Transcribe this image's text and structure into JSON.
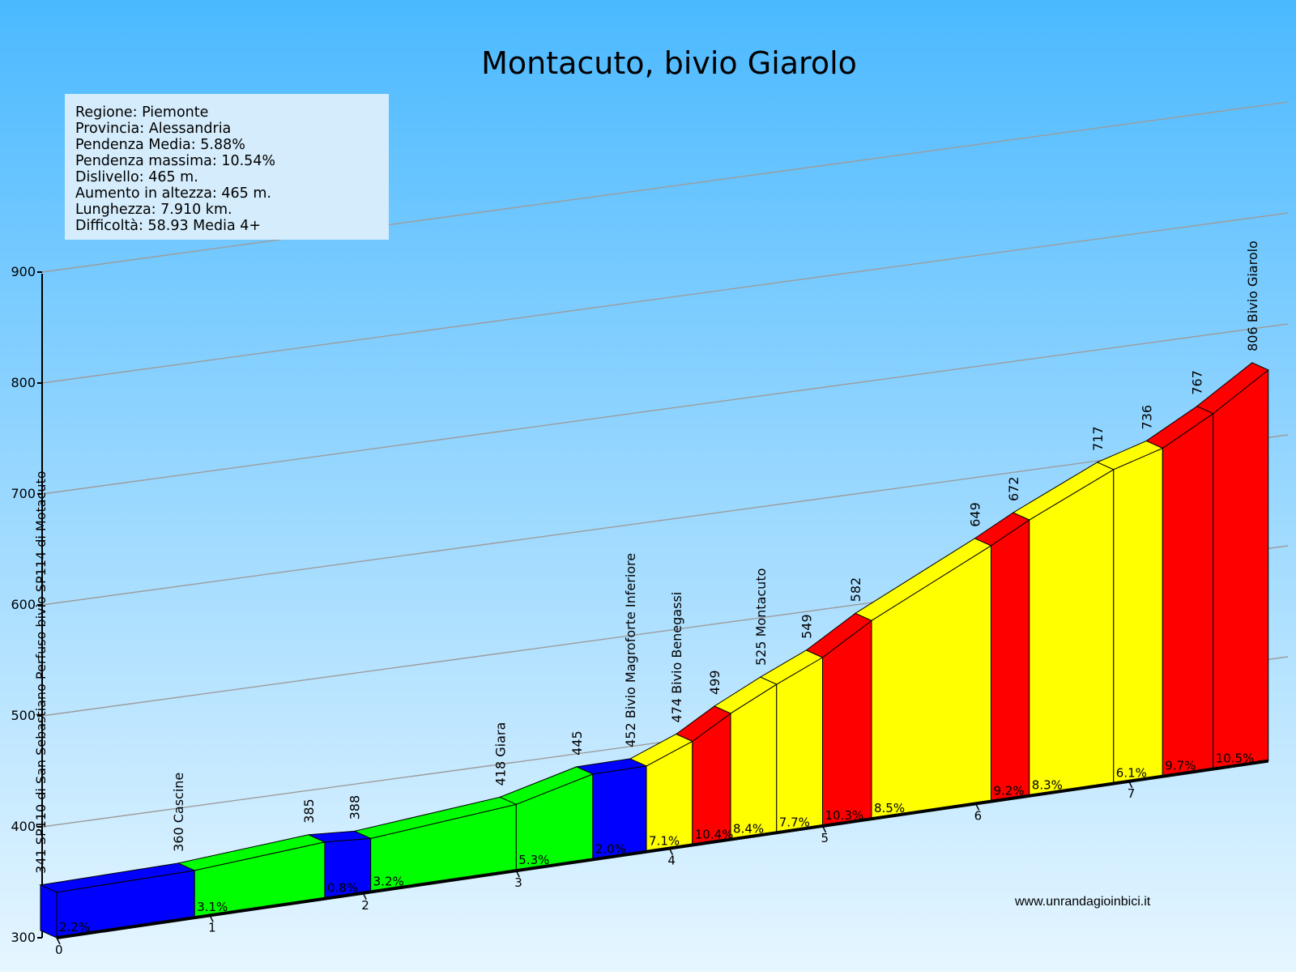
{
  "header": {
    "title": "Montacuto, bivio Giarolo"
  },
  "info_box": {
    "lines": [
      "Regione: Piemonte",
      "Provincia: Alessandria",
      "Pendenza Media: 5.88%",
      "Pendenza massima: 10.54%",
      "Dislivello:  465 m.",
      "Aumento in altezza:  465 m.",
      "Lunghezza:  7.910 km.",
      "Difficoltà: 58.93 Media 4+"
    ]
  },
  "footer": {
    "credit": "www.unrandagioinbici.it"
  },
  "colors": {
    "blue": "#0000ff",
    "green": "#00ff00",
    "yellow": "#ffff00",
    "red": "#ff0000",
    "sky_top": "#4bb9ff",
    "sky_bottom": "#e6f6ff"
  },
  "chart_data": {
    "type": "area",
    "title": "Montacuto, bivio Giarolo",
    "x_unit": "km",
    "y_unit": "m",
    "ylim": [
      300,
      900
    ],
    "y_ticks": [
      300,
      400,
      500,
      600,
      700,
      800,
      900
    ],
    "x_ticks": [
      0,
      1,
      2,
      3,
      4,
      5,
      6,
      7
    ],
    "grid": true,
    "segments": [
      {
        "start_km": 0.0,
        "end_km": 0.9,
        "grade": "2.2%",
        "color": "blue"
      },
      {
        "start_km": 0.9,
        "end_km": 1.75,
        "grade": "3.1%",
        "color": "green"
      },
      {
        "start_km": 1.75,
        "end_km": 2.05,
        "grade": "0.8%",
        "color": "blue"
      },
      {
        "start_km": 2.05,
        "end_km": 3.0,
        "grade": "3.2%",
        "color": "green"
      },
      {
        "start_km": 3.0,
        "end_km": 3.5,
        "grade": "5.3%",
        "color": "green"
      },
      {
        "start_km": 3.5,
        "end_km": 3.85,
        "grade": "2.0%",
        "color": "blue"
      },
      {
        "start_km": 3.85,
        "end_km": 4.15,
        "grade": "7.1%",
        "color": "yellow"
      },
      {
        "start_km": 4.15,
        "end_km": 4.4,
        "grade": "10.4%",
        "color": "red"
      },
      {
        "start_km": 4.4,
        "end_km": 4.7,
        "grade": "8.4%",
        "color": "yellow"
      },
      {
        "start_km": 4.7,
        "end_km": 5.0,
        "grade": "7.7%",
        "color": "yellow"
      },
      {
        "start_km": 5.0,
        "end_km": 5.32,
        "grade": "10.3%",
        "color": "red"
      },
      {
        "start_km": 5.32,
        "end_km": 6.1,
        "grade": "8.5%",
        "color": "yellow"
      },
      {
        "start_km": 6.1,
        "end_km": 6.35,
        "grade": "9.2%",
        "color": "red"
      },
      {
        "start_km": 6.35,
        "end_km": 6.9,
        "grade": "8.3%",
        "color": "yellow"
      },
      {
        "start_km": 6.9,
        "end_km": 7.22,
        "grade": "6.1%",
        "color": "yellow"
      },
      {
        "start_km": 7.22,
        "end_km": 7.55,
        "grade": "9.7%",
        "color": "red"
      },
      {
        "start_km": 7.55,
        "end_km": 7.91,
        "grade": "10.5%",
        "color": "red"
      }
    ],
    "profile": [
      {
        "km": 0.0,
        "elev": 341
      },
      {
        "km": 0.9,
        "elev": 360
      },
      {
        "km": 1.75,
        "elev": 385
      },
      {
        "km": 2.05,
        "elev": 388
      },
      {
        "km": 3.0,
        "elev": 418
      },
      {
        "km": 3.5,
        "elev": 445
      },
      {
        "km": 3.85,
        "elev": 452
      },
      {
        "km": 4.15,
        "elev": 474
      },
      {
        "km": 4.4,
        "elev": 499
      },
      {
        "km": 4.7,
        "elev": 525
      },
      {
        "km": 5.0,
        "elev": 549
      },
      {
        "km": 5.32,
        "elev": 582
      },
      {
        "km": 6.1,
        "elev": 649
      },
      {
        "km": 6.35,
        "elev": 672
      },
      {
        "km": 6.9,
        "elev": 717
      },
      {
        "km": 7.22,
        "elev": 736
      },
      {
        "km": 7.55,
        "elev": 767
      },
      {
        "km": 7.91,
        "elev": 806
      }
    ],
    "point_labels": [
      "341 SP110 di San Sebastiano Perfuso bivio SP114 di Motacuto",
      "360 Cascine",
      "385",
      "388",
      "418 Giara",
      "445",
      "452 Bivio Magroforte Inferiore",
      "474 Bivio Benegassi",
      "499",
      "525 Montacuto",
      "549",
      "582",
      "649",
      "672",
      "717",
      "736",
      "767",
      "806 Bivio Giarolo"
    ]
  }
}
